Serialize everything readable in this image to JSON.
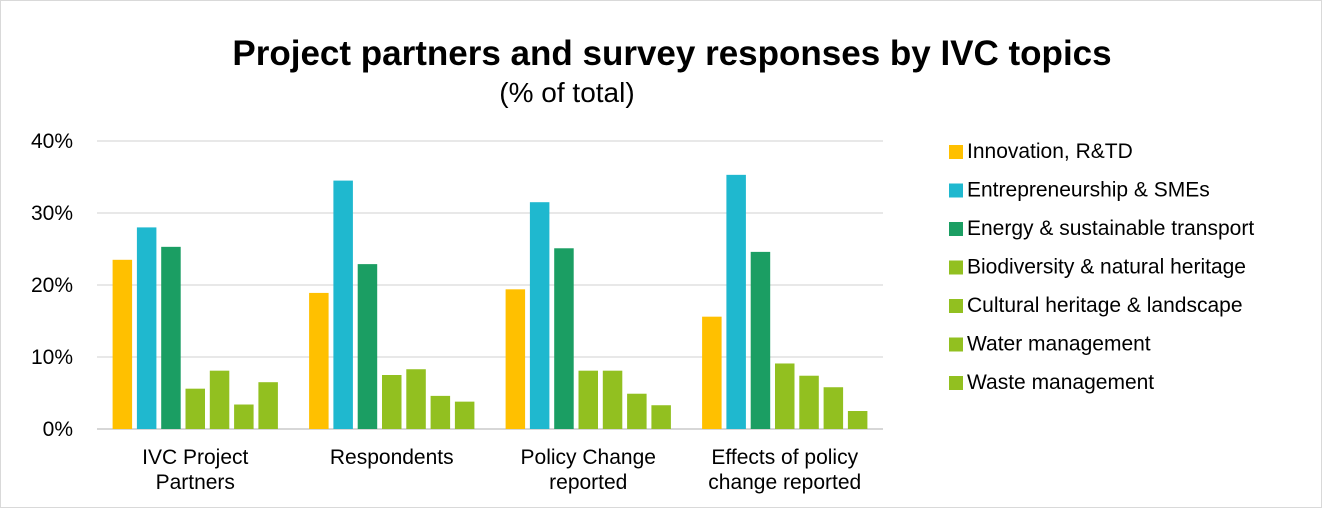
{
  "chart_data": {
    "type": "bar",
    "title": "Project partners and survey responses by IVC topics",
    "subtitle": "(% of total)",
    "xlabel": "",
    "ylabel": "",
    "ylim": [
      0,
      40
    ],
    "yticks": [
      "0%",
      "10%",
      "20%",
      "30%",
      "40%"
    ],
    "grid": true,
    "legend_position": "right",
    "categories": [
      [
        "IVC Project",
        "Partners"
      ],
      [
        "Respondents"
      ],
      [
        "Policy Change",
        "reported"
      ],
      [
        "Effects of policy",
        "change reported"
      ]
    ],
    "series": [
      {
        "name": "Innovation, R&TD",
        "color": "#FFC000",
        "values": [
          23.5,
          18.9,
          19.4,
          15.6
        ]
      },
      {
        "name": "Entrepreneurship & SMEs",
        "color": "#1FB8CF",
        "values": [
          28.0,
          34.5,
          31.5,
          35.3
        ]
      },
      {
        "name": "Energy & sustainable transport",
        "color": "#1B9E63",
        "values": [
          25.3,
          22.9,
          25.1,
          24.6
        ]
      },
      {
        "name": "Biodiversity & natural heritage",
        "color": "#92C020",
        "values": [
          5.6,
          7.5,
          8.1,
          9.1
        ]
      },
      {
        "name": "Cultural heritage & landscape",
        "color": "#92C020",
        "values": [
          8.1,
          8.3,
          8.1,
          7.4
        ]
      },
      {
        "name": "Water management",
        "color": "#92C020",
        "values": [
          3.4,
          4.6,
          4.9,
          5.8
        ]
      },
      {
        "name": "Waste management",
        "color": "#92C020",
        "values": [
          6.5,
          3.8,
          3.3,
          2.5
        ]
      }
    ]
  }
}
